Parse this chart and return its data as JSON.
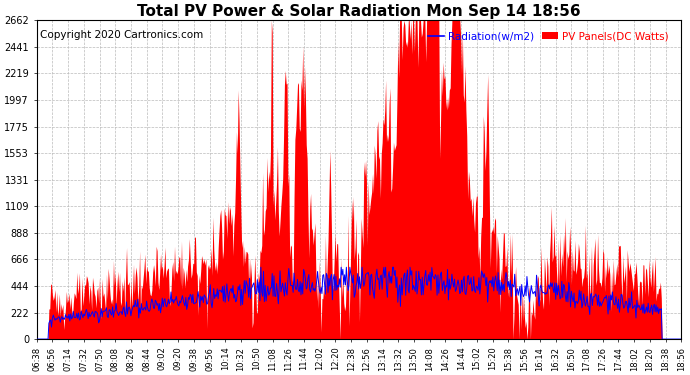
{
  "title": "Total PV Power & Solar Radiation Mon Sep 14 18:56",
  "copyright": "Copyright 2020 Cartronics.com",
  "legend_radiation": "Radiation(w/m2)",
  "legend_pv": "PV Panels(DC Watts)",
  "y_max": 2662.5,
  "y_ticks": [
    0.0,
    221.9,
    443.7,
    665.6,
    887.5,
    1109.4,
    1331.2,
    1553.1,
    1775.0,
    1996.8,
    2218.7,
    2440.6,
    2662.5
  ],
  "radiation_color": "#FF0000",
  "pv_color": "#0000FF",
  "background_color": "#FFFFFF",
  "grid_color": "#BBBBBB",
  "title_fontsize": 11,
  "copyright_fontsize": 7.5,
  "x_labels": [
    "06:38",
    "06:56",
    "07:14",
    "07:32",
    "07:50",
    "08:08",
    "08:26",
    "08:44",
    "09:02",
    "09:20",
    "09:38",
    "09:56",
    "10:14",
    "10:32",
    "10:50",
    "11:08",
    "11:26",
    "11:44",
    "12:02",
    "12:20",
    "12:38",
    "12:56",
    "13:14",
    "13:32",
    "13:50",
    "14:08",
    "14:26",
    "14:44",
    "15:02",
    "15:20",
    "15:38",
    "15:56",
    "16:14",
    "16:32",
    "16:50",
    "17:08",
    "17:26",
    "17:44",
    "18:02",
    "18:20",
    "18:38",
    "18:56"
  ]
}
